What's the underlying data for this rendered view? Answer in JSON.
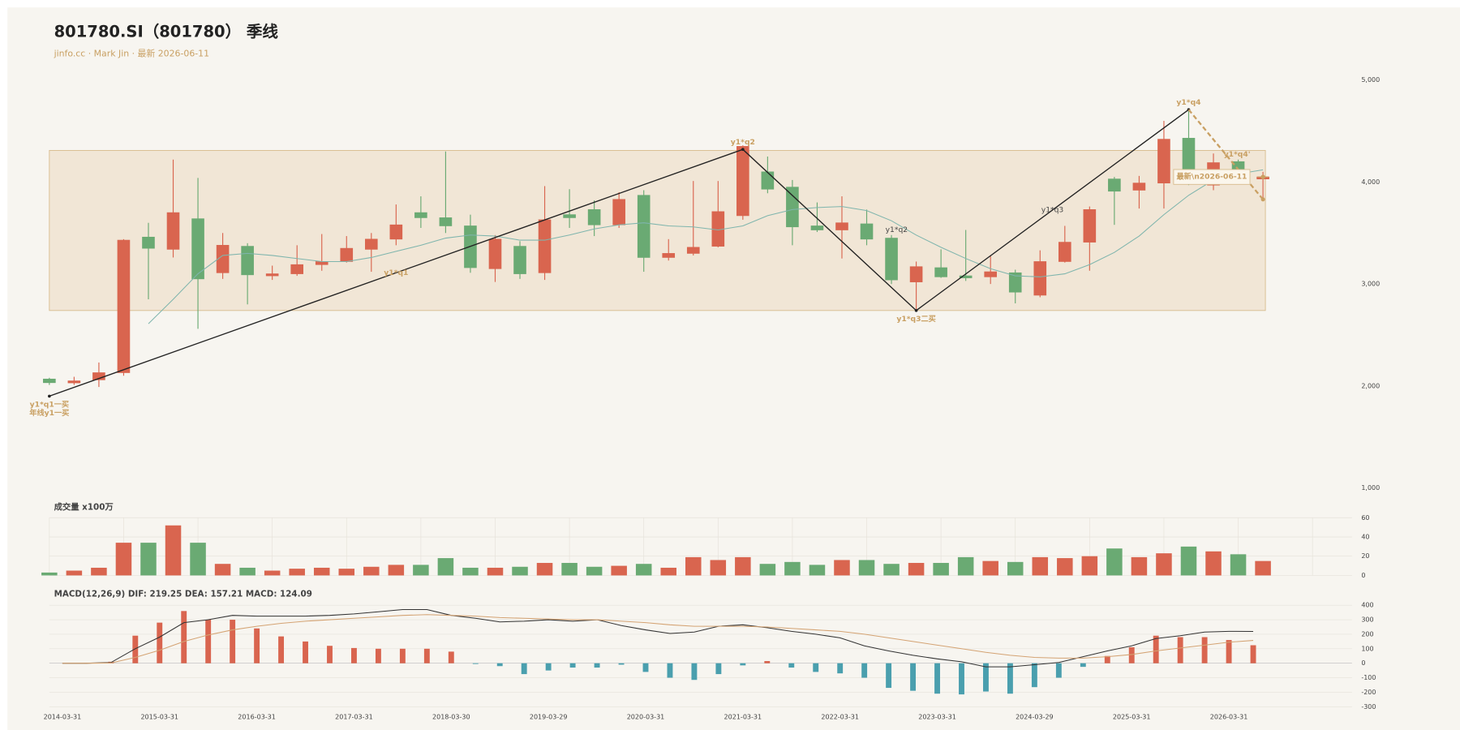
{
  "chart_data": [
    {
      "type": "candlestick",
      "title": "801780.SI（801780） 季线",
      "subtitle": "jinfo.cc · Mark Jin · 最新 2026-06-11",
      "categories": [
        "2014-03-31",
        null,
        null,
        null,
        "2015-03-31",
        null,
        null,
        null,
        "2016-03-31",
        null,
        null,
        null,
        "2017-03-31",
        null,
        null,
        null,
        "2018-03-30",
        null,
        null,
        null,
        "2019-03-29",
        null,
        null,
        null,
        "2020-03-31",
        null,
        null,
        null,
        "2021-03-31",
        null,
        null,
        null,
        "2022-03-31",
        null,
        null,
        null,
        "2023-03-31",
        null,
        null,
        null,
        "2024-03-29",
        null,
        null,
        null,
        "2025-03-31",
        null,
        null,
        null,
        "2026-03-31",
        null
      ],
      "open": [
        2068,
        2030,
        2060,
        2130,
        3460,
        3340,
        3640,
        3110,
        3370,
        3080,
        3100,
        3190,
        3220,
        3340,
        3440,
        3700,
        3650,
        3570,
        3150,
        3370,
        3110,
        3680,
        3730,
        3580,
        3870,
        3260,
        3300,
        3370,
        3670,
        4100,
        3950,
        3570,
        3530,
        3590,
        3450,
        3020,
        3160,
        3080,
        3070,
        3110,
        2890,
        3220,
        3410,
        4030,
        3920,
        3990,
        4430,
        3970,
        4200,
        4030
      ],
      "high": [
        2080,
        2090,
        2230,
        3440,
        3600,
        4220,
        4040,
        3500,
        3400,
        3180,
        3380,
        3490,
        3470,
        3500,
        3780,
        3860,
        4300,
        3680,
        3480,
        3420,
        3960,
        3930,
        3820,
        3900,
        3920,
        3440,
        4010,
        4010,
        4360,
        4250,
        4020,
        3800,
        3860,
        3730,
        3480,
        3220,
        3340,
        3530,
        3280,
        3140,
        3330,
        3570,
        3760,
        4050,
        4060,
        4600,
        4720,
        4280,
        4220,
        4100
      ],
      "low": [
        2010,
        2010,
        1990,
        2100,
        2850,
        3260,
        2560,
        3050,
        2800,
        3040,
        3080,
        3130,
        3210,
        3120,
        3380,
        3550,
        3500,
        3110,
        3020,
        3050,
        3040,
        3550,
        3470,
        3550,
        3120,
        3230,
        3280,
        3360,
        3630,
        3890,
        3380,
        3510,
        3250,
        3380,
        3000,
        2730,
        3060,
        3030,
        3000,
        2810,
        2870,
        3210,
        3130,
        3580,
        3740,
        3740,
        3970,
        3920,
        4030,
        3840
      ],
      "close": [
        2032,
        2050,
        2130,
        3430,
        3350,
        3700,
        3050,
        3380,
        3090,
        3100,
        3190,
        3220,
        3350,
        3440,
        3580,
        3650,
        3570,
        3160,
        3440,
        3100,
        3630,
        3650,
        3580,
        3830,
        3260,
        3300,
        3360,
        3710,
        4350,
        3930,
        3560,
        3530,
        3600,
        3440,
        3040,
        3170,
        3070,
        3060,
        3120,
        2920,
        3220,
        3410,
        3730,
        3910,
        3990,
        4420,
        3980,
        4190,
        4120,
        4050
      ],
      "up_color": "#d9654f",
      "down_color": "#6aaa73",
      "ma": {
        "color": "#7fb5ad",
        "values": [
          null,
          null,
          null,
          null,
          2610,
          2850,
          3100,
          3280,
          3300,
          3280,
          3250,
          3220,
          3220,
          3260,
          3320,
          3380,
          3450,
          3480,
          3470,
          3430,
          3430,
          3480,
          3540,
          3580,
          3600,
          3570,
          3560,
          3530,
          3570,
          3670,
          3730,
          3750,
          3760,
          3720,
          3620,
          3480,
          3360,
          3250,
          3150,
          3080,
          3070,
          3100,
          3190,
          3310,
          3470,
          3680,
          3870,
          4020,
          4080,
          4120
        ]
      },
      "zone": {
        "high": 4310,
        "low": 2740
      },
      "zigzag": {
        "index": [
          0,
          28,
          35,
          46
        ],
        "values": [
          1900,
          4320,
          2740,
          4710
        ],
        "labels": [
          "y1*q1一买\n年线y1一买",
          "y1*q2",
          "y1*q3二买",
          "y1*q4"
        ],
        "segment_labels": [
          "y1*q1",
          "y1*q2",
          "y1*q3"
        ]
      },
      "projection": {
        "index": 49,
        "value": 3830,
        "label": "y1*q4'"
      },
      "latest_label": "最新\\n2026-06-11",
      "ylim": [
        1000,
        5000
      ],
      "yticks": [
        {
          "value": 1000,
          "label": "1,000"
        },
        {
          "value": 2000,
          "label": "2,000"
        },
        {
          "value": 3000,
          "label": "3,000"
        },
        {
          "value": 4000,
          "label": "4,000"
        },
        {
          "value": 5000,
          "label": "5,000"
        }
      ]
    },
    {
      "type": "bar",
      "title": "成交量 x100万",
      "values": [
        3,
        5,
        8,
        34,
        34,
        52,
        34,
        12,
        8,
        5,
        7,
        8,
        7,
        9,
        11,
        11,
        18,
        8,
        8,
        9,
        13,
        13,
        9,
        10,
        12,
        8,
        19,
        16,
        19,
        12,
        14,
        11,
        16,
        16,
        12,
        13,
        13,
        19,
        15,
        14,
        19,
        18,
        20,
        28,
        19,
        23,
        30,
        25,
        22,
        15
      ],
      "ylim": [
        0,
        60
      ],
      "yticks": [
        0,
        20,
        40,
        60
      ]
    },
    {
      "type": "macd",
      "title": "MACD(12,26,9) DIF: 219.25 DEA: 157.21 MACD: 124.09",
      "hist": {
        "up_color": "#d9654f",
        "down_color": "#4a9fae",
        "values": [
          0,
          2,
          10,
          190,
          280,
          360,
          300,
          300,
          240,
          185,
          150,
          120,
          105,
          100,
          100,
          100,
          80,
          -5,
          -20,
          -75,
          -50,
          -30,
          -30,
          -10,
          -60,
          -100,
          -115,
          -75,
          -15,
          15,
          -30,
          -60,
          -70,
          -100,
          -170,
          -190,
          -210,
          -215,
          -195,
          -210,
          -165,
          -100,
          -25,
          50,
          110,
          190,
          180,
          180,
          160,
          124.09
        ]
      },
      "dif": {
        "color": "#333333",
        "values": [
          0,
          0,
          5,
          100,
          180,
          280,
          300,
          330,
          325,
          325,
          325,
          330,
          340,
          355,
          370,
          370,
          330,
          310,
          285,
          290,
          300,
          290,
          300,
          260,
          230,
          205,
          215,
          255,
          265,
          245,
          220,
          200,
          175,
          120,
          85,
          55,
          30,
          10,
          -25,
          -25,
          -10,
          5,
          45,
          85,
          120,
          170,
          190,
          215,
          220,
          219.25
        ]
      },
      "dea": {
        "color": "#d4a373",
        "values": [
          0,
          0,
          2,
          40,
          90,
          150,
          195,
          230,
          255,
          275,
          290,
          300,
          310,
          320,
          330,
          335,
          330,
          325,
          315,
          310,
          305,
          300,
          300,
          290,
          280,
          265,
          255,
          255,
          255,
          250,
          240,
          230,
          220,
          200,
          175,
          150,
          125,
          100,
          75,
          55,
          40,
          35,
          35,
          45,
          60,
          85,
          105,
          125,
          145,
          157.21
        ]
      },
      "ylim": [
        -300,
        400
      ],
      "yticks": [
        -300,
        -200,
        -100,
        0,
        100,
        200,
        300,
        400
      ]
    }
  ]
}
